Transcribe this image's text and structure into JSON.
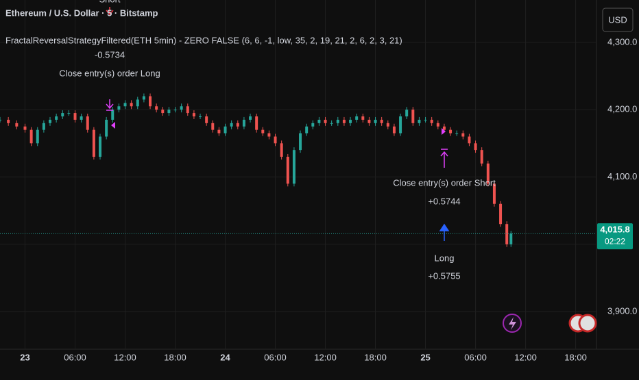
{
  "header": {
    "symbol": "Ethereum / U.S. Dollar · 5 · Bitstamp",
    "indicator": "FractalReversalStrategyFiltered(ETH 5min) - ZERO FALSE (6, 6, -1, low, 35, 2, 19, 21, 2, 6, 2, 3, 21)",
    "currency_button": "USD"
  },
  "chart_data": {
    "type": "candlestick-close",
    "x": [
      -3,
      -2,
      -1,
      0,
      0.75,
      1.5,
      2.25,
      3,
      3.75,
      4.5,
      5.25,
      6,
      6.75,
      7.5,
      8.25,
      9,
      9.75,
      10.5,
      11.25,
      12,
      12.75,
      13.5,
      14.25,
      15,
      15.75,
      16.5,
      17.25,
      18,
      18.75,
      19.5,
      20.25,
      21,
      21.75,
      22.5,
      23.25,
      24,
      24.75,
      25.5,
      26.25,
      27,
      27.75,
      28.5,
      29.25,
      30,
      30.75,
      31.5,
      32.25,
      33,
      33.75,
      34.5,
      35.25,
      36,
      36.75,
      37.5,
      38.25,
      39,
      39.75,
      40.5,
      41.25,
      42,
      42.75,
      43.5,
      44.25,
      45,
      45.75,
      46.5,
      47.25,
      48,
      48.75,
      49.5,
      50.25,
      51,
      51.75,
      52.5,
      53.25,
      54,
      54.75,
      55.5,
      56.25,
      57,
      57.75,
      58.25
    ],
    "values": [
      4185,
      4180,
      4175,
      4170,
      4150,
      4170,
      4180,
      4185,
      4190,
      4195,
      4195,
      4185,
      4190,
      4170,
      4130,
      4160,
      4185,
      4200,
      4205,
      4210,
      4205,
      4215,
      4220,
      4205,
      4200,
      4195,
      4200,
      4200,
      4205,
      4195,
      4190,
      4190,
      4180,
      4170,
      4165,
      4175,
      4180,
      4175,
      4185,
      4190,
      4170,
      4165,
      4160,
      4150,
      4130,
      4090,
      4140,
      4165,
      4175,
      4180,
      4185,
      4180,
      4180,
      4185,
      4180,
      4185,
      4190,
      4185,
      4180,
      4185,
      4180,
      4175,
      4165,
      4190,
      4200,
      4180,
      4185,
      4185,
      4180,
      4175,
      4170,
      4165,
      4165,
      4160,
      4150,
      4140,
      4120,
      4090,
      4060,
      4030,
      4000,
      4015.8
    ],
    "up_color": "#26a69a",
    "down_color": "#ef5350",
    "xlim": [
      -3,
      68.5
    ],
    "ylim": [
      3844,
      4363
    ],
    "xticks": [
      {
        "value": 0,
        "label": "23"
      },
      {
        "value": 6,
        "label": "06:00"
      },
      {
        "value": 12,
        "label": "12:00"
      },
      {
        "value": 18,
        "label": "18:00"
      },
      {
        "value": 24,
        "label": "24"
      },
      {
        "value": 30,
        "label": "06:00"
      },
      {
        "value": 36,
        "label": "12:00"
      },
      {
        "value": 42,
        "label": "18:00"
      },
      {
        "value": 48,
        "label": "25"
      },
      {
        "value": 54,
        "label": "06:00"
      },
      {
        "value": 60,
        "label": "12:00"
      },
      {
        "value": 66,
        "label": "18:00"
      }
    ],
    "yticks": [
      {
        "value": 3900,
        "label": "3,900.0"
      },
      {
        "value": 4000,
        "label": ""
      },
      {
        "value": 4100,
        "label": "4,100.0"
      },
      {
        "value": 4200,
        "label": "4,200.0"
      },
      {
        "value": 4300,
        "label": "4,300.0"
      }
    ],
    "grid": true,
    "last_price": {
      "value": 4015.8,
      "label": "4,015.8"
    },
    "countdown": "02:22",
    "annotations": [
      "Short",
      "-0.5734",
      "Close entry(s) order Long",
      "Close entry(s) order Short",
      "+0.5744",
      "Long",
      "+0.5755"
    ]
  }
}
